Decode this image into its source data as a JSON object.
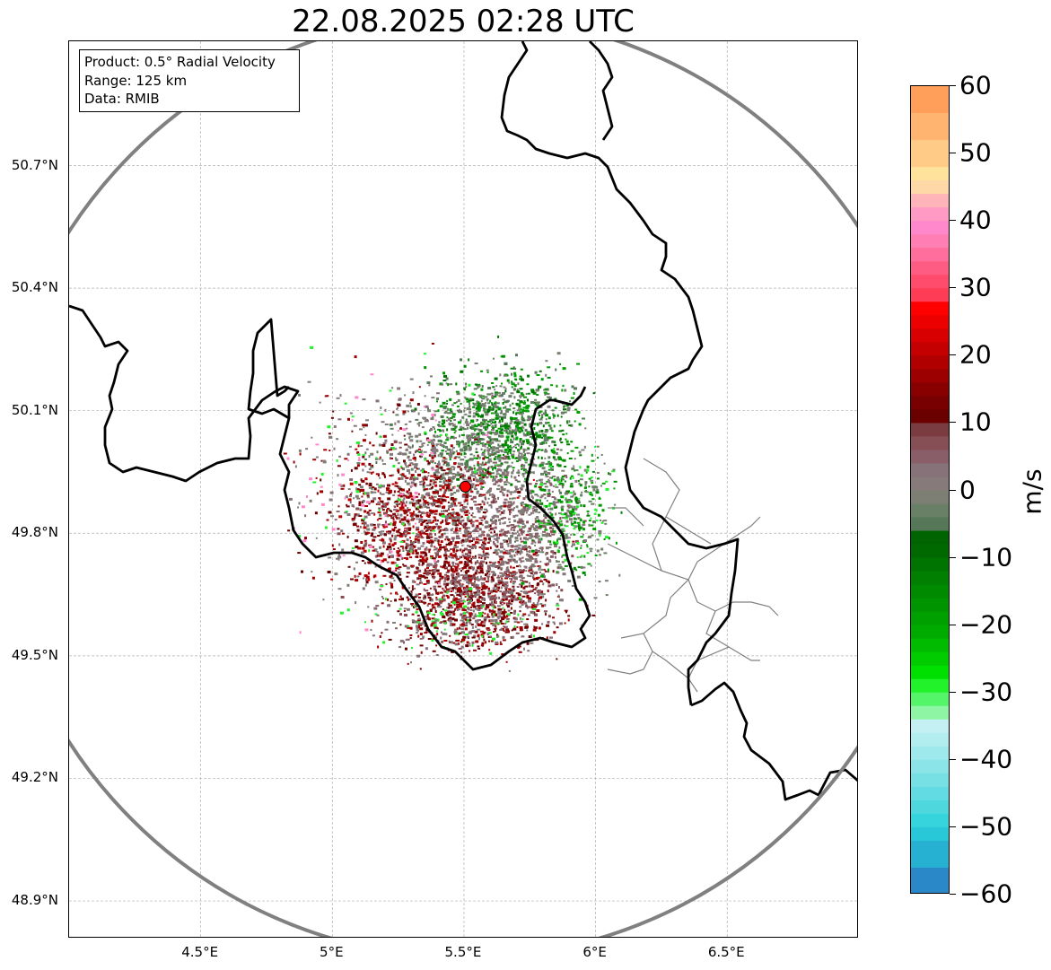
{
  "title": "22.08.2025 02:28 UTC",
  "info_box": {
    "product": "Product: 0.5° Radial Velocity",
    "range": "Range: 125 km",
    "data": "Data: RMIB"
  },
  "map": {
    "lon_range": [
      4.0,
      7.0
    ],
    "lat_range": [
      48.8,
      51.0
    ],
    "radar_site": {
      "lon": 5.505,
      "lat": 49.914
    },
    "range_km": 125,
    "gridlines": true,
    "lon_ticks": [
      {
        "value": 4.5,
        "label": "4.5°E"
      },
      {
        "value": 5.0,
        "label": "5°E"
      },
      {
        "value": 5.5,
        "label": "5.5°E"
      },
      {
        "value": 6.0,
        "label": "6°E"
      },
      {
        "value": 6.5,
        "label": "6.5°E"
      }
    ],
    "lat_ticks": [
      {
        "value": 50.7,
        "label": "50.7°N"
      },
      {
        "value": 50.4,
        "label": "50.4°N"
      },
      {
        "value": 50.1,
        "label": "50.1°N"
      },
      {
        "value": 49.8,
        "label": "49.8°N"
      },
      {
        "value": 49.5,
        "label": "49.5°N"
      },
      {
        "value": 49.2,
        "label": "49.2°N"
      },
      {
        "value": 48.9,
        "label": "48.9°N"
      }
    ],
    "colors": {
      "range_ring": "#808080",
      "border": "#000000",
      "admin_border": "#808080",
      "grid": "#b0b0b0",
      "site_marker": "#ff0000"
    }
  },
  "colorbar": {
    "unit": "m/s",
    "min": -60,
    "max": 60,
    "ticks": [
      {
        "value": 60,
        "label": "60"
      },
      {
        "value": 50,
        "label": "50"
      },
      {
        "value": 40,
        "label": "40"
      },
      {
        "value": 30,
        "label": "30"
      },
      {
        "value": 20,
        "label": "20"
      },
      {
        "value": 10,
        "label": "10"
      },
      {
        "value": 0,
        "label": "0"
      },
      {
        "value": -10,
        "label": "−10"
      },
      {
        "value": -20,
        "label": "−20"
      },
      {
        "value": -30,
        "label": "−30"
      },
      {
        "value": -40,
        "label": "−40"
      },
      {
        "value": -50,
        "label": "−50"
      },
      {
        "value": -60,
        "label": "−60"
      }
    ],
    "bands": [
      {
        "from": 56,
        "to": 60,
        "color": "#ff9f5a"
      },
      {
        "from": 52,
        "to": 56,
        "color": "#ffb570"
      },
      {
        "from": 48,
        "to": 52,
        "color": "#ffcb87"
      },
      {
        "from": 46,
        "to": 48,
        "color": "#ffe39c"
      },
      {
        "from": 44,
        "to": 46,
        "color": "#ffd8a8"
      },
      {
        "from": 42,
        "to": 44,
        "color": "#ffb4b9"
      },
      {
        "from": 40,
        "to": 42,
        "color": "#ff9ac4"
      },
      {
        "from": 38,
        "to": 40,
        "color": "#ff88cc"
      },
      {
        "from": 36,
        "to": 38,
        "color": "#ff7fb4"
      },
      {
        "from": 34,
        "to": 36,
        "color": "#ff6e9c"
      },
      {
        "from": 32,
        "to": 34,
        "color": "#ff5c84"
      },
      {
        "from": 30,
        "to": 32,
        "color": "#ff4c6c"
      },
      {
        "from": 28,
        "to": 30,
        "color": "#ff3c55"
      },
      {
        "from": 26,
        "to": 28,
        "color": "#ff0000"
      },
      {
        "from": 24,
        "to": 26,
        "color": "#ec0000"
      },
      {
        "from": 22,
        "to": 24,
        "color": "#d80000"
      },
      {
        "from": 20,
        "to": 22,
        "color": "#c40000"
      },
      {
        "from": 18,
        "to": 20,
        "color": "#b00000"
      },
      {
        "from": 16,
        "to": 18,
        "color": "#9c0000"
      },
      {
        "from": 14,
        "to": 16,
        "color": "#880000"
      },
      {
        "from": 12,
        "to": 14,
        "color": "#780000"
      },
      {
        "from": 10,
        "to": 12,
        "color": "#6a0000"
      },
      {
        "from": 8,
        "to": 10,
        "color": "#7a3c40"
      },
      {
        "from": 6,
        "to": 8,
        "color": "#864e55"
      },
      {
        "from": 4,
        "to": 6,
        "color": "#8a5e68"
      },
      {
        "from": 2,
        "to": 4,
        "color": "#88727a"
      },
      {
        "from": 0,
        "to": 2,
        "color": "#867a7a"
      },
      {
        "from": -2,
        "to": 0,
        "color": "#7d7f74"
      },
      {
        "from": -4,
        "to": -2,
        "color": "#6a8066"
      },
      {
        "from": -6,
        "to": -4,
        "color": "#567858"
      },
      {
        "from": -8,
        "to": -6,
        "color": "#006400"
      },
      {
        "from": -10,
        "to": -8,
        "color": "#006a00"
      },
      {
        "from": -12,
        "to": -10,
        "color": "#007400"
      },
      {
        "from": -14,
        "to": -12,
        "color": "#007f00"
      },
      {
        "from": -16,
        "to": -14,
        "color": "#008a00"
      },
      {
        "from": -18,
        "to": -16,
        "color": "#009500"
      },
      {
        "from": -20,
        "to": -18,
        "color": "#00a000"
      },
      {
        "from": -22,
        "to": -20,
        "color": "#00ab00"
      },
      {
        "from": -24,
        "to": -22,
        "color": "#00bb00"
      },
      {
        "from": -26,
        "to": -24,
        "color": "#00cc00"
      },
      {
        "from": -28,
        "to": -26,
        "color": "#00e000"
      },
      {
        "from": -30,
        "to": -28,
        "color": "#22f22a"
      },
      {
        "from": -32,
        "to": -30,
        "color": "#55f56a"
      },
      {
        "from": -34,
        "to": -32,
        "color": "#8ef5a4"
      },
      {
        "from": -36,
        "to": -34,
        "color": "#c4f0f4"
      },
      {
        "from": -38,
        "to": -36,
        "color": "#b2eef0"
      },
      {
        "from": -40,
        "to": -38,
        "color": "#9ee9ec"
      },
      {
        "from": -42,
        "to": -40,
        "color": "#8ae4e8"
      },
      {
        "from": -44,
        "to": -42,
        "color": "#76e0e4"
      },
      {
        "from": -46,
        "to": -44,
        "color": "#62dce2"
      },
      {
        "from": -48,
        "to": -46,
        "color": "#4ed8de"
      },
      {
        "from": -50,
        "to": -48,
        "color": "#36d4dc"
      },
      {
        "from": -52,
        "to": -50,
        "color": "#28c8d8"
      },
      {
        "from": -56,
        "to": -52,
        "color": "#26b0d2"
      },
      {
        "from": -60,
        "to": -56,
        "color": "#2a88c8"
      }
    ]
  },
  "echo_clusters": [
    {
      "lon": 5.65,
      "lat": 50.07,
      "rlon": 0.28,
      "rlat": 0.14,
      "count": 900,
      "palette": [
        "#008a00",
        "#007400",
        "#009500",
        "#00a000",
        "#6a8066",
        "#567858",
        "#7d7f74"
      ]
    },
    {
      "lon": 5.45,
      "lat": 49.97,
      "rlon": 0.32,
      "rlat": 0.16,
      "count": 500,
      "palette": [
        "#7d7f74",
        "#88727a",
        "#867a7a",
        "#6a8066",
        "#567858"
      ]
    },
    {
      "lon": 5.35,
      "lat": 49.82,
      "rlon": 0.3,
      "rlat": 0.16,
      "count": 900,
      "palette": [
        "#9c0000",
        "#880000",
        "#6a0000",
        "#b00000",
        "#c40000",
        "#864e55",
        "#88727a"
      ]
    },
    {
      "lon": 5.55,
      "lat": 49.66,
      "rlon": 0.3,
      "rlat": 0.13,
      "count": 900,
      "palette": [
        "#9c0000",
        "#880000",
        "#6a0000",
        "#b00000",
        "#864e55",
        "#8a5e68",
        "#88727a"
      ]
    },
    {
      "lon": 5.7,
      "lat": 49.8,
      "rlon": 0.25,
      "rlat": 0.18,
      "count": 700,
      "palette": [
        "#867a7a",
        "#88727a",
        "#7d7f74",
        "#8a5e68",
        "#864e55"
      ]
    },
    {
      "lon": 5.9,
      "lat": 49.85,
      "rlon": 0.18,
      "rlat": 0.16,
      "count": 350,
      "palette": [
        "#00a000",
        "#008a00",
        "#6a8066",
        "#7d7f74",
        "#22f22a"
      ]
    },
    {
      "lon": 5.2,
      "lat": 49.9,
      "rlon": 0.38,
      "rlat": 0.3,
      "count": 450,
      "palette": [
        "#88727a",
        "#867a7a",
        "#7d7f74",
        "#9c0000",
        "#6a0000",
        "#22f22a",
        "#ff88cc"
      ]
    },
    {
      "lon": 5.5,
      "lat": 49.58,
      "rlon": 0.35,
      "rlat": 0.08,
      "count": 350,
      "palette": [
        "#88727a",
        "#6a0000",
        "#9c0000",
        "#22f22a",
        "#867a7a"
      ]
    }
  ]
}
